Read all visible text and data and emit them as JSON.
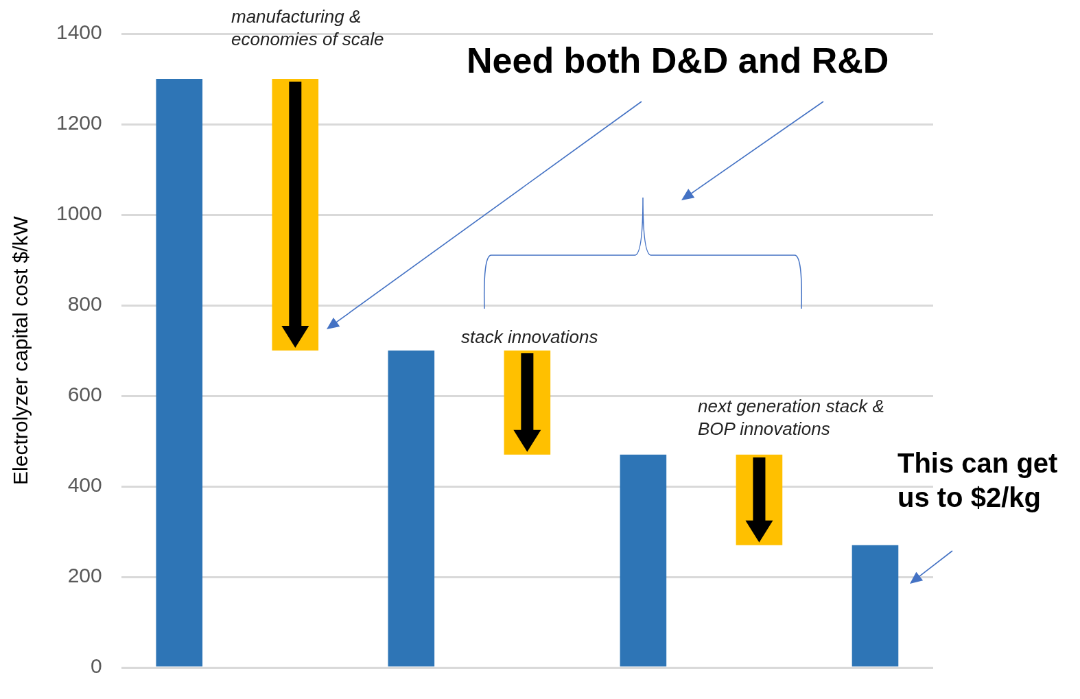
{
  "chart_data": {
    "type": "bar",
    "ylabel": "Electrolyzer capital cost $/kW",
    "categories": [
      null,
      null,
      null,
      null,
      null,
      null,
      null
    ],
    "values": [
      1300,
      600,
      700,
      230,
      470,
      200,
      270
    ],
    "base": [
      null,
      700,
      null,
      470,
      null,
      270,
      null
    ],
    "colors": [
      "#2e75b6",
      "#ffc000",
      "#2e75b6",
      "#ffc000",
      "#2e75b6",
      "#ffc000",
      "#2e75b6"
    ],
    "ylim": [
      0,
      1400
    ],
    "yticks": [
      0,
      200,
      400,
      600,
      800,
      1000,
      1200,
      1400
    ],
    "grid": "y",
    "legend": false,
    "annotations": [
      "manufacturing & economies of scale",
      "Need both D&D and R&D",
      "stack innovations",
      "next generation stack & BOP innovations",
      "This can get us to $2/kg"
    ]
  }
}
